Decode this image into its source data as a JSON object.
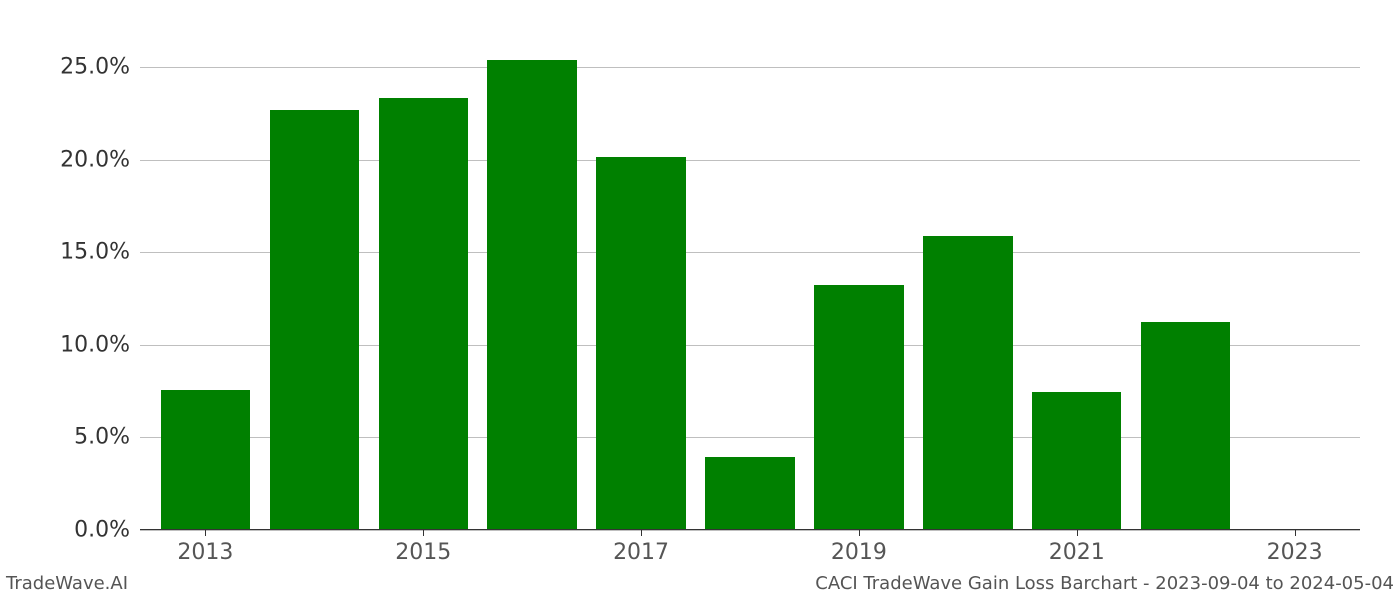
{
  "chart": {
    "type": "bar",
    "background_color": "#ffffff",
    "grid_color": "#bfbfbf",
    "axis_color": "#333333",
    "bar_color": "#008000",
    "y": {
      "min": 0,
      "max": 27,
      "ticks": [
        0,
        5,
        10,
        15,
        20,
        25
      ],
      "tick_labels": [
        "0.0%",
        "5.0%",
        "10.0%",
        "15.0%",
        "20.0%",
        "25.0%"
      ],
      "label_fontsize": 22,
      "label_color": "#333333"
    },
    "x": {
      "min": 2012.4,
      "max": 2023.6,
      "ticks": [
        2013,
        2015,
        2017,
        2019,
        2021,
        2023
      ],
      "tick_labels": [
        "2013",
        "2015",
        "2017",
        "2019",
        "2021",
        "2023"
      ],
      "label_fontsize": 22,
      "label_color": "#555555"
    },
    "bars": {
      "years": [
        2013,
        2014,
        2015,
        2016,
        2017,
        2018,
        2019,
        2020,
        2021,
        2022,
        2023
      ],
      "values": [
        7.5,
        22.6,
        23.3,
        25.3,
        20.1,
        3.9,
        13.2,
        15.8,
        7.4,
        11.2,
        0
      ],
      "width": 0.82
    }
  },
  "footer": {
    "left": "TradeWave.AI",
    "right": "CACI TradeWave Gain Loss Barchart - 2023-09-04 to 2024-05-04",
    "fontsize": 18,
    "color": "#555555"
  }
}
